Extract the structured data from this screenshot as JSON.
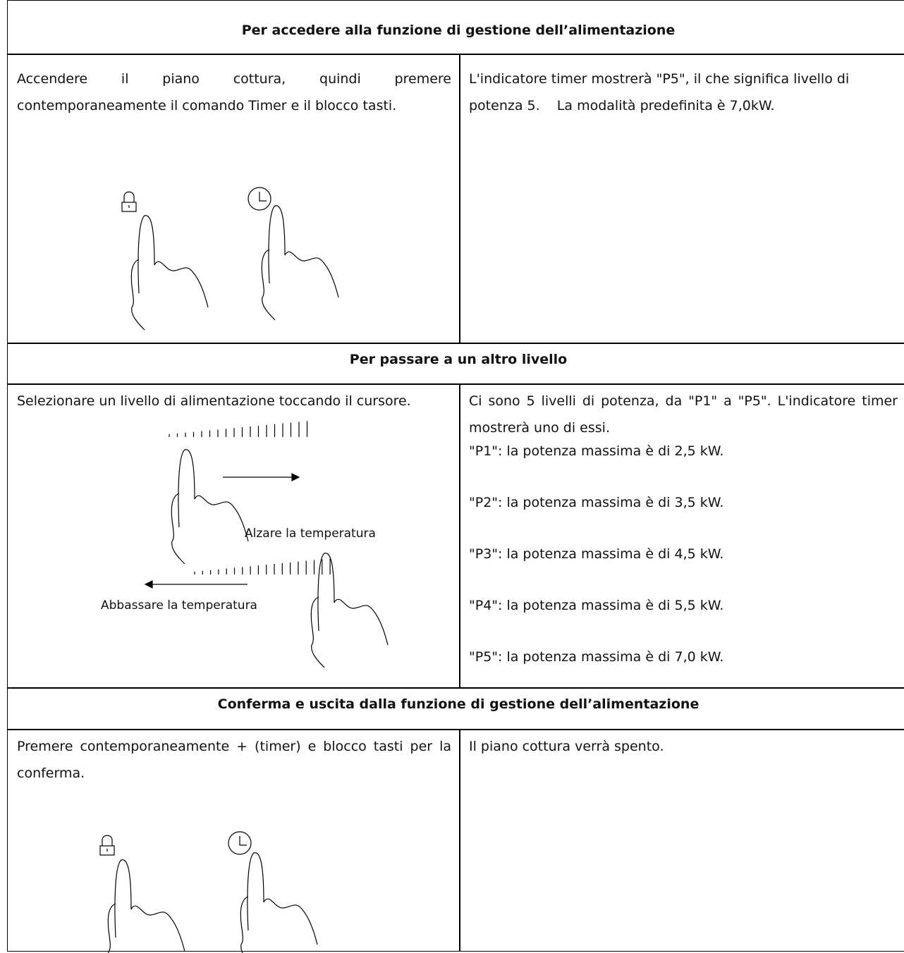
{
  "sections": [
    {
      "header": "Per accedere alla funzione di gestione dell’alimentazione",
      "left": "Accendere il piano cottura, quindi premere contemporaneamente il comando Timer e il blocco tasti.",
      "right": [
        "L'indicatore timer mostrerà \"P5\", il che significa livello di potenza 5.    La modalità predefinita è 7,0kW."
      ]
    },
    {
      "header": "Per passare a un altro livello",
      "left": "Selezionare un livello di alimentazione toccando il cursore.",
      "illustration": {
        "increase": "Alzare la temperatura",
        "decrease": "Abbassare la temperatura"
      },
      "right": [
        "Ci sono 5 livelli di potenza, da \"P1\" a \"P5\". L'indicatore timer mostrerà uno di essi.",
        "\"P1\": la potenza massima è di 2,5 kW.",
        "\"P2\": la potenza massima è di 3,5 kW.",
        "\"P3\": la potenza massima è di 4,5 kW.",
        "\"P4\": la potenza massima è di 5,5 kW.",
        "\"P5\": la potenza massima è di 7,0 kW."
      ]
    },
    {
      "header": "Conferma e uscita dalla funzione di gestione dell’alimentazione",
      "left": "Premere contemporaneamente + (timer) e blocco tasti per la conferma.",
      "right": [
        "Il piano cottura verrà spento."
      ]
    }
  ]
}
